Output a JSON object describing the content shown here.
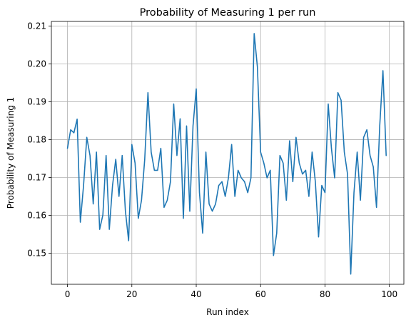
{
  "chart_data": {
    "type": "line",
    "title": "Probability of Measuring 1 per run",
    "xlabel": "Run index",
    "ylabel": "Probability of Measuring 1",
    "xlim": [
      -5,
      104.5
    ],
    "ylim": [
      0.1418,
      0.2112
    ],
    "grid": true,
    "xticks": [
      0,
      20,
      40,
      60,
      80,
      100
    ],
    "yticks": [
      0.15,
      0.16,
      0.17,
      0.18,
      0.19,
      0.2,
      0.21
    ],
    "xtick_labels": [
      "0",
      "20",
      "40",
      "60",
      "80",
      "100"
    ],
    "ytick_labels": [
      "0.15",
      "0.16",
      "0.17",
      "0.18",
      "0.19",
      "0.20",
      "0.21"
    ],
    "series": [
      {
        "color": "#1f77b4",
        "x": [
          0,
          1,
          2,
          3,
          4,
          5,
          6,
          7,
          8,
          9,
          10,
          11,
          12,
          13,
          14,
          15,
          16,
          17,
          18,
          19,
          20,
          21,
          22,
          23,
          24,
          25,
          26,
          27,
          28,
          29,
          30,
          31,
          32,
          33,
          34,
          35,
          36,
          37,
          38,
          39,
          40,
          41,
          42,
          43,
          44,
          45,
          46,
          47,
          48,
          49,
          50,
          51,
          52,
          53,
          54,
          55,
          56,
          57,
          58,
          59,
          60,
          61,
          62,
          63,
          64,
          65,
          66,
          67,
          68,
          69,
          70,
          71,
          72,
          73,
          74,
          75,
          76,
          77,
          78,
          79,
          80,
          81,
          82,
          83,
          84,
          85,
          86,
          87,
          88,
          89,
          90,
          91,
          92,
          93,
          94,
          95,
          96,
          97,
          98,
          99
        ],
        "values": [
          0.1777,
          0.1826,
          0.1818,
          0.1854,
          0.1582,
          0.1679,
          0.1806,
          0.1758,
          0.163,
          0.1767,
          0.1563,
          0.1601,
          0.1758,
          0.1563,
          0.1679,
          0.1748,
          0.165,
          0.1758,
          0.1611,
          0.1533,
          0.1787,
          0.1738,
          0.1592,
          0.164,
          0.1748,
          0.1924,
          0.1767,
          0.1719,
          0.1719,
          0.1777,
          0.1621,
          0.164,
          0.1689,
          0.1894,
          0.1758,
          0.1855,
          0.1592,
          0.1836,
          0.1611,
          0.1836,
          0.1934,
          0.166,
          0.1553,
          0.1767,
          0.163,
          0.1611,
          0.163,
          0.1679,
          0.1689,
          0.165,
          0.1699,
          0.1787,
          0.165,
          0.1719,
          0.1699,
          0.1689,
          0.166,
          0.1699,
          0.208,
          0.1992,
          0.1767,
          0.1738,
          0.1699,
          0.1719,
          0.1494,
          0.1553,
          0.1758,
          0.1738,
          0.164,
          0.1797,
          0.1689,
          0.1806,
          0.1738,
          0.1709,
          0.1719,
          0.165,
          0.1767,
          0.1689,
          0.1543,
          0.1679,
          0.166,
          0.1894,
          0.1777,
          0.1699,
          0.1924,
          0.1904,
          0.1767,
          0.1709,
          0.1445,
          0.166,
          0.1767,
          0.164,
          0.1806,
          0.1826,
          0.1758,
          0.1728,
          0.1621,
          0.1836,
          0.1982,
          0.1758
        ]
      }
    ]
  }
}
